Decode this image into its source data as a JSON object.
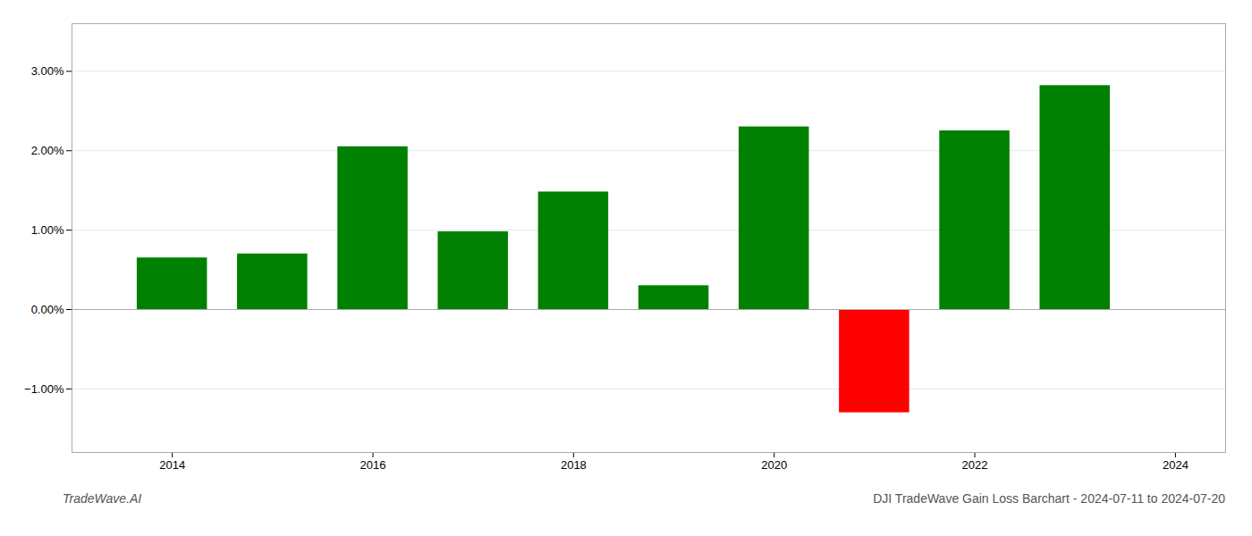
{
  "chart_data": {
    "type": "bar",
    "title": "DJI TradeWave Gain Loss Barchart - 2024-07-11 to 2024-07-20",
    "annotations": [
      "TradeWave.AI"
    ],
    "x": [
      2014,
      2015,
      2016,
      2017,
      2018,
      2019,
      2020,
      2021,
      2022,
      2023
    ],
    "values": [
      0.0065,
      0.007,
      0.0205,
      0.0098,
      0.0148,
      0.003,
      0.023,
      -0.013,
      0.0225,
      0.0282
    ],
    "colors": [
      "#008000",
      "#008000",
      "#008000",
      "#008000",
      "#008000",
      "#008000",
      "#008000",
      "#ff0000",
      "#008000",
      "#008000"
    ],
    "xlim": [
      2013,
      2024.5
    ],
    "xticks": [
      2014,
      2016,
      2018,
      2020,
      2022,
      2024
    ],
    "ylim": [
      -0.018,
      0.036
    ],
    "yticks": [
      {
        "value": -0.01,
        "label": "−1.00%"
      },
      {
        "value": 0.0,
        "label": "0.00%"
      },
      {
        "value": 0.01,
        "label": "1.00%"
      },
      {
        "value": 0.02,
        "label": "2.00%"
      },
      {
        "value": 0.03,
        "label": "3.00%"
      }
    ],
    "grid": true
  }
}
